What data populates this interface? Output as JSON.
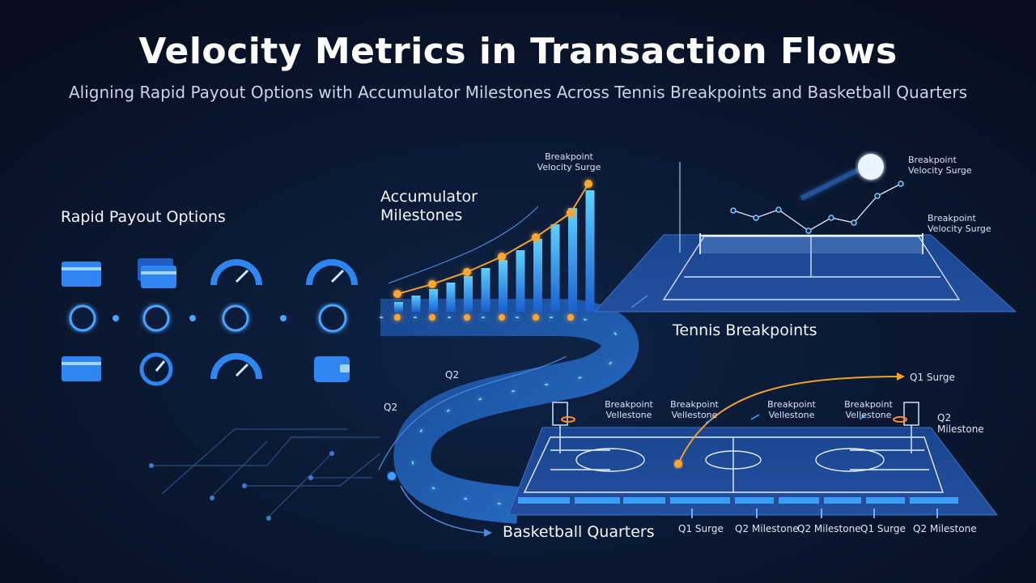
{
  "header": {
    "title": "Velocity Metrics in Transaction Flows",
    "subtitle": "Aligning Rapid Payout Options with Accumulator Milestones Across Tennis Breakpoints and Basketball Quarters"
  },
  "payout": {
    "label": "Rapid Payout Options"
  },
  "accumulator": {
    "label": "Accumulator Milestones",
    "annotation": "Breakpoint Velocity Surge"
  },
  "tennis": {
    "label": "Tennis Breakpoints",
    "annotations": [
      "Breakpoint Velocity Surge",
      "Breakpoint Velocity Surge"
    ]
  },
  "basketball": {
    "label": "Basketball Quarters",
    "court_labels": [
      "Breakpoint Vellestone",
      "Breakpoint Vellestone",
      "Breakpoint Vellestone",
      "Breakpoint Vellestone"
    ],
    "side_labels": [
      "Q1 Surge",
      "Q2 Milestone"
    ],
    "quarter_labels": [
      "Q2",
      "Q2"
    ],
    "bottom_labels": [
      "Q1 Surge",
      "Q2 Milestone",
      "Q2 Milestone",
      "Q1 Surge",
      "Q2 Milestone"
    ]
  }
}
